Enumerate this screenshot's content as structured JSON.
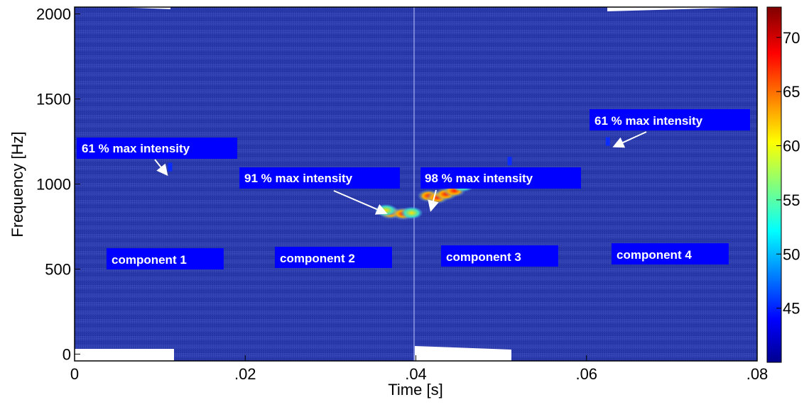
{
  "chart_data": {
    "type": "heatmap",
    "title": "",
    "xlabel": "Time [s]",
    "ylabel": "Frequency [Hz]",
    "xlim": [
      0,
      0.08
    ],
    "ylim": [
      -40,
      2040
    ],
    "xticks": [
      "0",
      ".02",
      ".04",
      ".06",
      ".08"
    ],
    "xtick_values": [
      0,
      0.02,
      0.04,
      0.06,
      0.08
    ],
    "yticks": [
      "0",
      "500",
      "1000",
      "1500",
      "2000"
    ],
    "ytick_values": [
      0,
      500,
      1000,
      1500,
      2000
    ],
    "colorbar": {
      "range": [
        40,
        72.8
      ],
      "ticks": [
        "45",
        "50",
        "55",
        "60",
        "65",
        "70"
      ],
      "tick_values": [
        45,
        50,
        55,
        60,
        65,
        70
      ]
    },
    "background_level": 42,
    "hotspots": [
      {
        "t": 0.0112,
        "f": 1100,
        "v": 45
      },
      {
        "t": 0.037,
        "f": 830,
        "v": 68
      },
      {
        "t": 0.0385,
        "f": 825,
        "v": 62
      },
      {
        "t": 0.0395,
        "f": 830,
        "v": 58
      },
      {
        "t": 0.0365,
        "f": 845,
        "v": 60
      },
      {
        "t": 0.0415,
        "f": 930,
        "v": 70
      },
      {
        "t": 0.0425,
        "f": 920,
        "v": 64
      },
      {
        "t": 0.0435,
        "f": 940,
        "v": 66
      },
      {
        "t": 0.0445,
        "f": 960,
        "v": 68
      },
      {
        "t": 0.0455,
        "f": 990,
        "v": 58
      },
      {
        "t": 0.051,
        "f": 1135,
        "v": 46
      },
      {
        "t": 0.0625,
        "f": 1250,
        "v": 45
      }
    ],
    "annotations": [
      {
        "text": "61 % max intensity"
      },
      {
        "text": "91 % max intensity"
      },
      {
        "text": "98 % max intensity"
      },
      {
        "text": "61 % max intensity"
      },
      {
        "text": "component 1"
      },
      {
        "text": "component 2"
      },
      {
        "text": "component 3"
      },
      {
        "text": "component 4"
      }
    ]
  },
  "colors": {
    "background": "#2a38a8",
    "label_box": "#0000ff"
  }
}
